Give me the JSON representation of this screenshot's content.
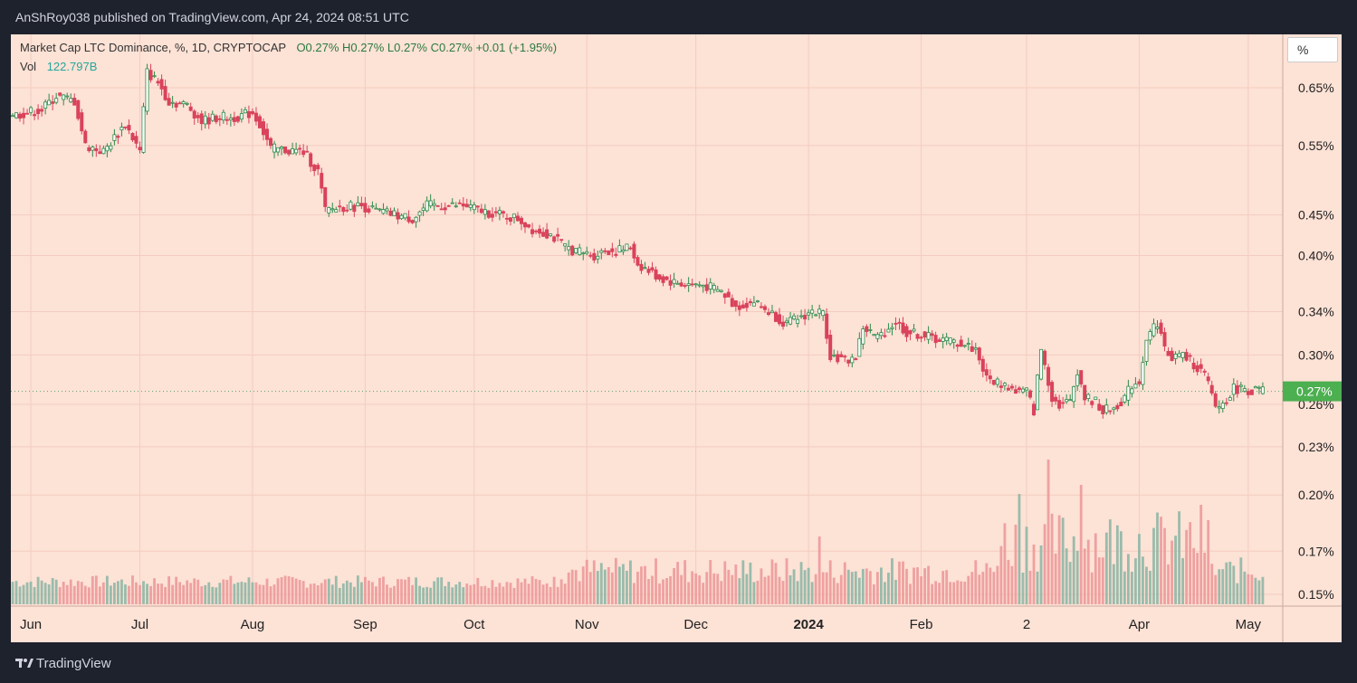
{
  "header": {
    "publisher_line": "AnShRoy038 published on TradingView.com, Apr 24, 2024 08:51 UTC"
  },
  "legend": {
    "symbol": "Market Cap LTC Dominance, %, 1D, CRYPTOCAP",
    "ohlc": "O0.27%  H0.27%  L0.27%  C0.27%  +0.01 (+1.95%)",
    "vol_label": "Vol",
    "vol_value": "122.797B"
  },
  "scale_button": "%",
  "footer": {
    "brand": "TradingView"
  },
  "colors": {
    "up": "#2e8b4a",
    "down": "#d9435b",
    "bg": "#fde2d6",
    "grid": "#f3cdbf",
    "vol_up": "#8fb7a6",
    "vol_down": "#ec9a9a",
    "price_tag": "#4caf50"
  },
  "chart_data": {
    "type": "candlestick",
    "title": "Market Cap LTC Dominance, %, 1D, CRYPTOCAP",
    "y_scale": "log",
    "ylim": [
      0.145,
      0.72
    ],
    "y_ticks": [
      {
        "v": 0.65,
        "label": "0.65%"
      },
      {
        "v": 0.55,
        "label": "0.55%"
      },
      {
        "v": 0.45,
        "label": "0.45%"
      },
      {
        "v": 0.4,
        "label": "0.40%"
      },
      {
        "v": 0.34,
        "label": "0.34%"
      },
      {
        "v": 0.3,
        "label": "0.30%"
      },
      {
        "v": 0.26,
        "label": "0.26%"
      },
      {
        "v": 0.23,
        "label": "0.23%"
      },
      {
        "v": 0.2,
        "label": "0.20%"
      },
      {
        "v": 0.17,
        "label": "0.17%"
      },
      {
        "v": 0.15,
        "label": "0.15%"
      }
    ],
    "x_ticks": [
      {
        "day": 5,
        "label": "Jun"
      },
      {
        "day": 35,
        "label": "Jul"
      },
      {
        "day": 66,
        "label": "Aug"
      },
      {
        "day": 97,
        "label": "Sep"
      },
      {
        "day": 127,
        "label": "Oct"
      },
      {
        "day": 158,
        "label": "Nov"
      },
      {
        "day": 188,
        "label": "Dec"
      },
      {
        "day": 219,
        "label": "2024"
      },
      {
        "day": 250,
        "label": "Feb"
      },
      {
        "day": 279,
        "label": "2"
      },
      {
        "day": 310,
        "label": "Apr"
      },
      {
        "day": 340,
        "label": "May"
      }
    ],
    "last_price": {
      "v": 0.27,
      "label": "0.27%"
    },
    "close_anchors": [
      [
        0,
        0.6
      ],
      [
        8,
        0.61
      ],
      [
        12,
        0.635
      ],
      [
        17,
        0.625
      ],
      [
        20,
        0.55
      ],
      [
        25,
        0.54
      ],
      [
        31,
        0.585
      ],
      [
        35,
        0.54
      ],
      [
        37,
        0.68
      ],
      [
        40,
        0.66
      ],
      [
        43,
        0.625
      ],
      [
        48,
        0.618
      ],
      [
        52,
        0.59
      ],
      [
        57,
        0.598
      ],
      [
        60,
        0.595
      ],
      [
        66,
        0.605
      ],
      [
        68,
        0.585
      ],
      [
        71,
        0.545
      ],
      [
        80,
        0.54
      ],
      [
        84,
        0.51
      ],
      [
        86,
        0.455
      ],
      [
        90,
        0.46
      ],
      [
        96,
        0.462
      ],
      [
        100,
        0.455
      ],
      [
        105,
        0.45
      ],
      [
        110,
        0.445
      ],
      [
        114,
        0.462
      ],
      [
        119,
        0.462
      ],
      [
        124,
        0.462
      ],
      [
        129,
        0.455
      ],
      [
        134,
        0.45
      ],
      [
        139,
        0.445
      ],
      [
        143,
        0.432
      ],
      [
        148,
        0.425
      ],
      [
        152,
        0.41
      ],
      [
        155,
        0.405
      ],
      [
        160,
        0.4
      ],
      [
        163,
        0.406
      ],
      [
        166,
        0.405
      ],
      [
        170,
        0.41
      ],
      [
        172,
        0.39
      ],
      [
        178,
        0.375
      ],
      [
        182,
        0.37
      ],
      [
        185,
        0.368
      ],
      [
        190,
        0.367
      ],
      [
        195,
        0.36
      ],
      [
        199,
        0.345
      ],
      [
        204,
        0.35
      ],
      [
        208,
        0.34
      ],
      [
        213,
        0.328
      ],
      [
        217,
        0.335
      ],
      [
        220,
        0.34
      ],
      [
        223,
        0.338
      ],
      [
        225,
        0.3
      ],
      [
        229,
        0.295
      ],
      [
        232,
        0.298
      ],
      [
        234,
        0.325
      ],
      [
        238,
        0.315
      ],
      [
        243,
        0.33
      ],
      [
        246,
        0.32
      ],
      [
        250,
        0.318
      ],
      [
        253,
        0.315
      ],
      [
        258,
        0.312
      ],
      [
        261,
        0.31
      ],
      [
        265,
        0.305
      ],
      [
        268,
        0.28
      ],
      [
        273,
        0.275
      ],
      [
        276,
        0.27
      ],
      [
        279,
        0.27
      ],
      [
        281,
        0.255
      ],
      [
        283,
        0.305
      ],
      [
        286,
        0.265
      ],
      [
        288,
        0.26
      ],
      [
        291,
        0.262
      ],
      [
        293,
        0.287
      ],
      [
        295,
        0.265
      ],
      [
        298,
        0.262
      ],
      [
        300,
        0.255
      ],
      [
        303,
        0.257
      ],
      [
        306,
        0.265
      ],
      [
        308,
        0.275
      ],
      [
        310,
        0.278
      ],
      [
        312,
        0.315
      ],
      [
        315,
        0.33
      ],
      [
        317,
        0.305
      ],
      [
        319,
        0.298
      ],
      [
        322,
        0.3
      ],
      [
        325,
        0.292
      ],
      [
        328,
        0.283
      ],
      [
        331,
        0.258
      ],
      [
        333,
        0.26
      ],
      [
        336,
        0.272
      ],
      [
        339,
        0.272
      ],
      [
        341,
        0.27
      ],
      [
        344,
        0.271
      ]
    ],
    "volume_overlay": true
  }
}
